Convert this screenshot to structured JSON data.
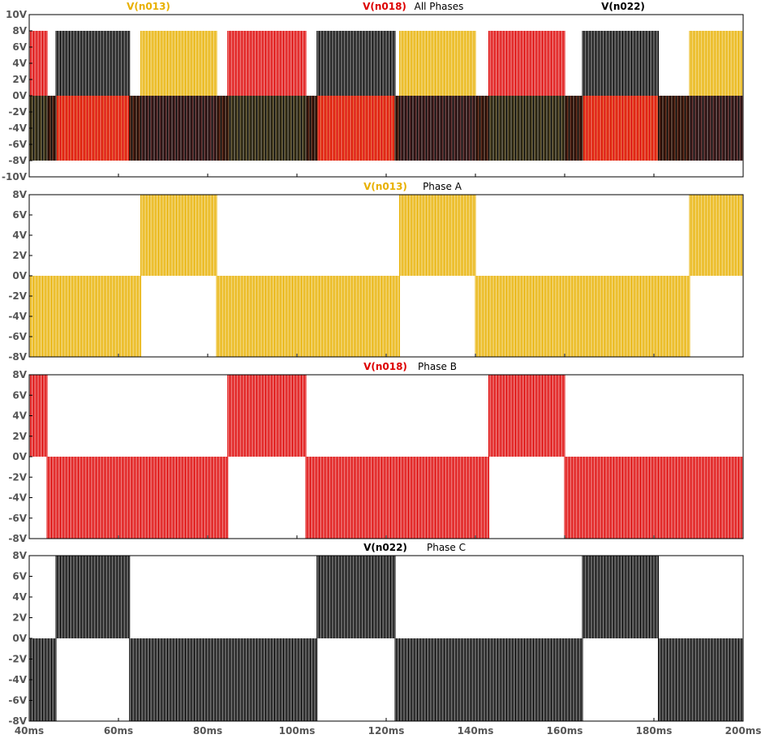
{
  "colors": {
    "phase_a": "#e8b000",
    "phase_b": "#dd0000",
    "phase_c": "#000000",
    "axis": "#000000",
    "tick_text": "#555555"
  },
  "chart_data": [
    {
      "type": "line",
      "title": "All Phases",
      "xlim": [
        40,
        200
      ],
      "ylim": [
        -10,
        10
      ],
      "y_ticks": [
        "10V",
        "8V",
        "6V",
        "4V",
        "2V",
        "0V",
        "-2V",
        "-4V",
        "-6V",
        "-8V",
        "-10V"
      ],
      "grid": false,
      "series": [
        {
          "name": "V(n013)",
          "color_key": "phase_a",
          "amplitude_v": 8,
          "positive_intervals_ms": [
            [
              65,
              82
            ],
            [
              123,
              140
            ],
            [
              188,
              200
            ]
          ],
          "negative_intervals_ms": [
            [
              40,
              65
            ],
            [
              82,
              123
            ],
            [
              140,
              188
            ]
          ]
        },
        {
          "name": "V(n018)",
          "color_key": "phase_b",
          "amplitude_v": 8,
          "positive_intervals_ms": [
            [
              40,
              44
            ],
            [
              84.5,
              102
            ],
            [
              143,
              160
            ]
          ],
          "negative_intervals_ms": [
            [
              44,
              84.5
            ],
            [
              102,
              143
            ],
            [
              160,
              200
            ]
          ]
        },
        {
          "name": "V(n022)",
          "color_key": "phase_c",
          "amplitude_v": 8,
          "positive_intervals_ms": [
            [
              46,
              62.5
            ],
            [
              104.5,
              122
            ],
            [
              164,
              181
            ]
          ],
          "negative_intervals_ms": [
            [
              40,
              46
            ],
            [
              62.5,
              104.5
            ],
            [
              122,
              164
            ],
            [
              181,
              200
            ]
          ]
        }
      ]
    },
    {
      "type": "line",
      "title": "Phase A",
      "xlim": [
        40,
        200
      ],
      "ylim": [
        -8,
        8
      ],
      "y_ticks": [
        "8V",
        "6V",
        "4V",
        "2V",
        "0V",
        "-2V",
        "-4V",
        "-6V",
        "-8V"
      ],
      "grid": false,
      "series": [
        {
          "name": "V(n013)",
          "color_key": "phase_a",
          "amplitude_v": 8,
          "positive_intervals_ms": [
            [
              65,
              82
            ],
            [
              123,
              140
            ],
            [
              188,
              200
            ]
          ],
          "negative_intervals_ms": [
            [
              40,
              65
            ],
            [
              82,
              123
            ],
            [
              140,
              188
            ]
          ]
        }
      ]
    },
    {
      "type": "line",
      "title": "Phase B",
      "xlim": [
        40,
        200
      ],
      "ylim": [
        -8,
        8
      ],
      "y_ticks": [
        "8V",
        "6V",
        "4V",
        "2V",
        "0V",
        "-2V",
        "-4V",
        "-6V",
        "-8V"
      ],
      "grid": false,
      "series": [
        {
          "name": "V(n018)",
          "color_key": "phase_b",
          "amplitude_v": 8,
          "positive_intervals_ms": [
            [
              40,
              44
            ],
            [
              84.5,
              102
            ],
            [
              143,
              160
            ]
          ],
          "negative_intervals_ms": [
            [
              44,
              84.5
            ],
            [
              102,
              143
            ],
            [
              160,
              200
            ]
          ]
        }
      ]
    },
    {
      "type": "line",
      "title": "Phase C",
      "xlim": [
        40,
        200
      ],
      "ylim": [
        -8,
        8
      ],
      "y_ticks": [
        "8V",
        "6V",
        "4V",
        "2V",
        "0V",
        "-2V",
        "-4V",
        "-6V",
        "-8V"
      ],
      "grid": false,
      "series": [
        {
          "name": "V(n022)",
          "color_key": "phase_c",
          "amplitude_v": 8,
          "positive_intervals_ms": [
            [
              46,
              62.5
            ],
            [
              104.5,
              122
            ],
            [
              164,
              181
            ]
          ],
          "negative_intervals_ms": [
            [
              40,
              46
            ],
            [
              62.5,
              104.5
            ],
            [
              122,
              164
            ],
            [
              181,
              200
            ]
          ]
        }
      ]
    }
  ],
  "x_axis": {
    "ticks": [
      "40ms",
      "60ms",
      "80ms",
      "100ms",
      "120ms",
      "140ms",
      "160ms",
      "180ms",
      "200ms"
    ],
    "values_ms": [
      40,
      60,
      80,
      100,
      120,
      140,
      160,
      180,
      200
    ]
  },
  "pwm": {
    "pulse_spacing_ms": 0.25
  }
}
